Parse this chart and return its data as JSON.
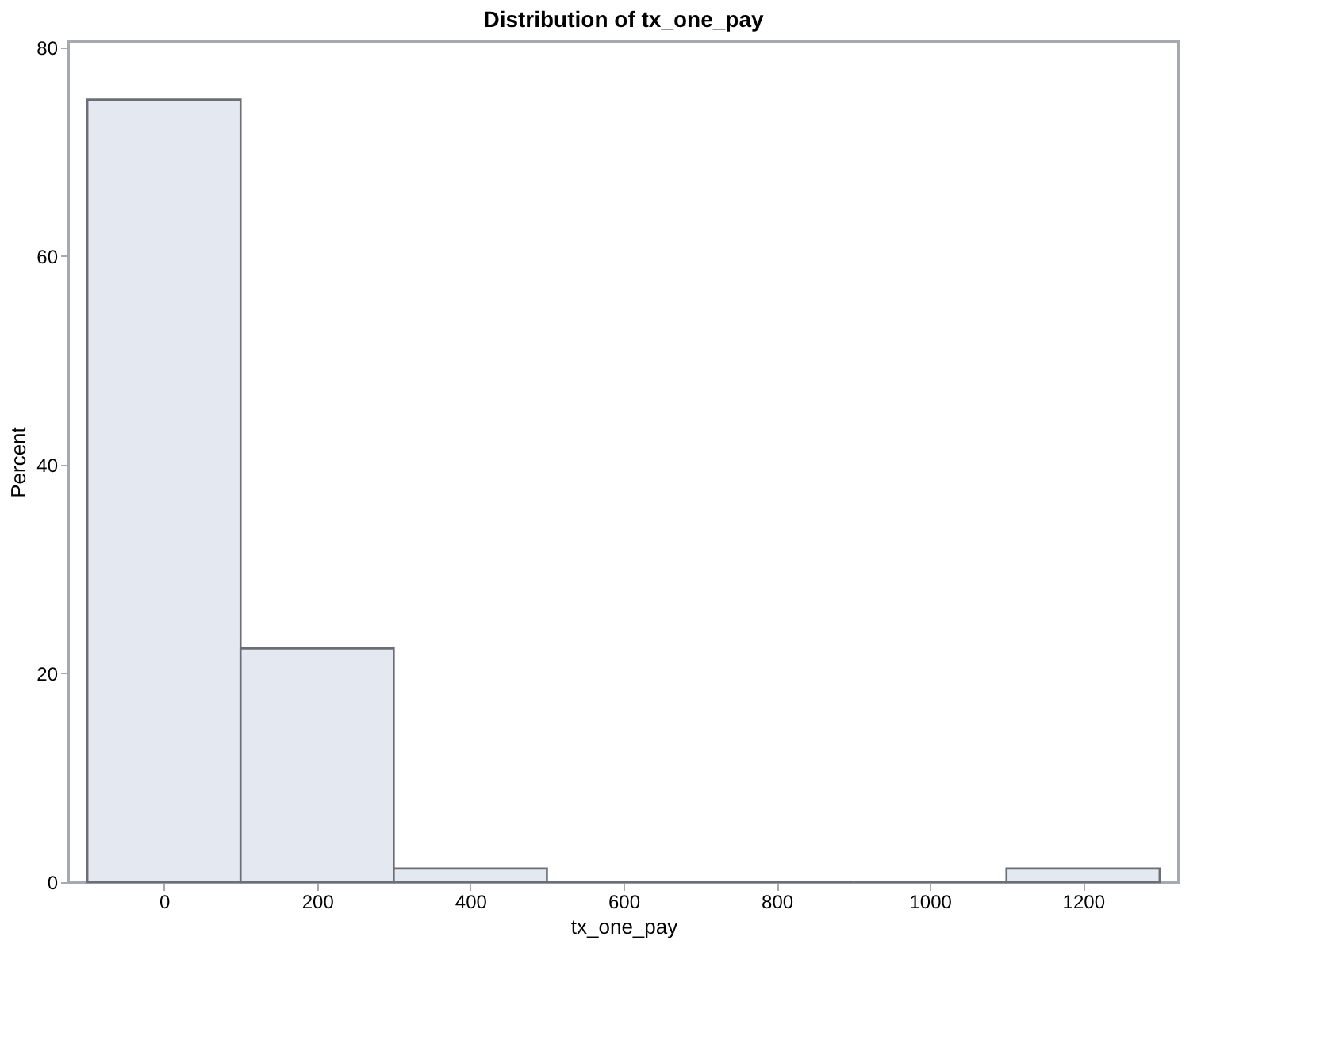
{
  "chart_data": {
    "type": "histogram",
    "title": "Distribution of tx_one_pay",
    "xlabel": "tx_one_pay",
    "ylabel": "Percent",
    "bins": [
      -100,
      100,
      300,
      500,
      700,
      900,
      1100,
      1300
    ],
    "values": [
      75.0,
      22.4,
      1.3,
      0,
      0,
      0,
      1.3
    ],
    "color": "#e3e8f1",
    "xlim": [
      -125,
      1325
    ],
    "xticks": [
      0,
      200,
      400,
      600,
      800,
      1000,
      1200
    ],
    "ylim": [
      0,
      80.6
    ],
    "yticks": [
      0,
      20,
      40,
      60,
      80
    ],
    "grid": false
  }
}
